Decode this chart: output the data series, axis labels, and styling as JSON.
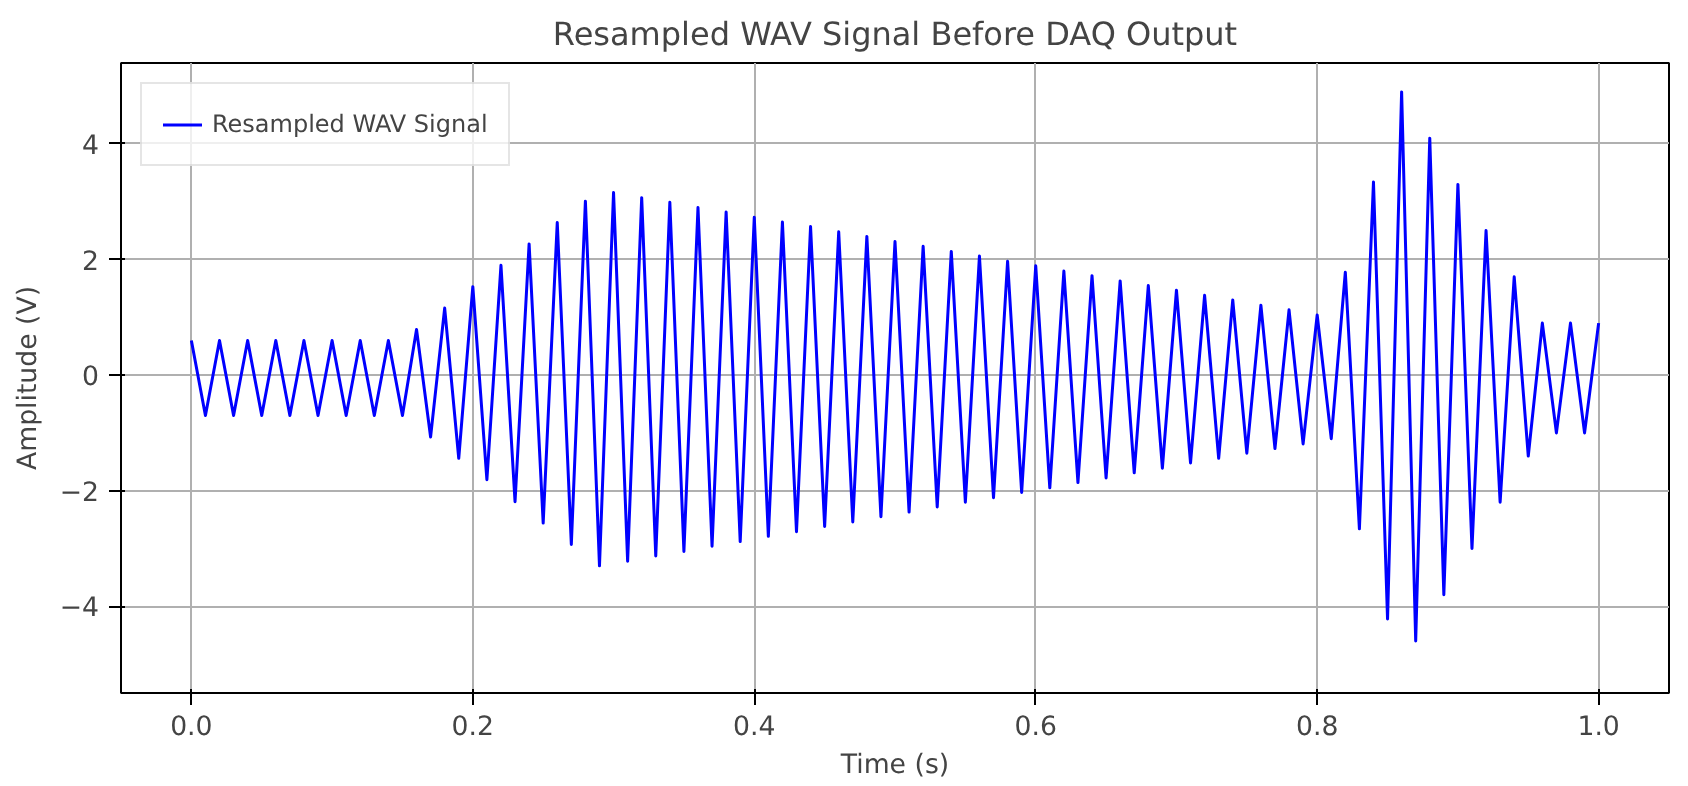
{
  "chart_data": {
    "type": "line",
    "title": "Resampled WAV Signal Before DAQ Output",
    "xlabel": "Time (s)",
    "ylabel": "Amplitude (V)",
    "x": [
      0.0,
      0.01,
      0.02,
      0.03,
      0.04,
      0.05,
      0.06,
      0.07,
      0.08,
      0.09,
      0.1,
      0.11,
      0.12,
      0.13,
      0.14,
      0.15,
      0.16,
      0.17,
      0.18,
      0.19,
      0.2,
      0.21,
      0.22,
      0.23,
      0.24,
      0.25,
      0.26,
      0.27,
      0.28,
      0.29,
      0.3,
      0.31,
      0.32,
      0.33,
      0.34,
      0.35,
      0.36,
      0.37,
      0.38,
      0.39,
      0.4,
      0.41,
      0.42,
      0.43,
      0.44,
      0.45,
      0.46,
      0.47,
      0.48,
      0.49,
      0.5,
      0.51,
      0.52,
      0.53,
      0.54,
      0.55,
      0.56,
      0.57,
      0.58,
      0.59,
      0.6,
      0.61,
      0.62,
      0.63,
      0.64,
      0.65,
      0.66,
      0.67,
      0.68,
      0.69,
      0.7,
      0.71,
      0.72,
      0.73,
      0.74,
      0.75,
      0.76,
      0.77,
      0.78,
      0.79,
      0.8,
      0.81,
      0.82,
      0.83,
      0.84,
      0.85,
      0.86,
      0.87,
      0.88,
      0.89,
      0.9,
      0.91,
      0.92,
      0.93,
      0.94,
      0.95,
      0.96,
      0.97,
      0.98,
      0.99,
      1.0
    ],
    "series": [
      {
        "name": "Resampled WAV Signal",
        "color": "#0000ff",
        "values": [
          0.6,
          -0.7,
          0.6,
          -0.7,
          0.6,
          -0.7,
          0.6,
          -0.7,
          0.6,
          -0.7,
          0.6,
          -0.7,
          0.6,
          -0.7,
          0.6,
          -0.7,
          0.79,
          -1.07,
          1.16,
          -1.44,
          1.53,
          -1.81,
          1.9,
          -2.19,
          2.27,
          -2.56,
          2.64,
          -2.93,
          3.01,
          -3.3,
          3.16,
          -3.22,
          3.07,
          -3.13,
          2.99,
          -3.05,
          2.9,
          -2.96,
          2.82,
          -2.88,
          2.73,
          -2.79,
          2.65,
          -2.71,
          2.57,
          -2.62,
          2.48,
          -2.54,
          2.4,
          -2.45,
          2.31,
          -2.37,
          2.23,
          -2.28,
          2.14,
          -2.2,
          2.06,
          -2.12,
          1.97,
          -2.03,
          1.89,
          -1.95,
          1.8,
          -1.86,
          1.72,
          -1.78,
          1.63,
          -1.69,
          1.55,
          -1.61,
          1.47,
          -1.52,
          1.38,
          -1.44,
          1.3,
          -1.35,
          1.21,
          -1.27,
          1.13,
          -1.19,
          1.04,
          -1.1,
          1.78,
          -2.66,
          3.34,
          -4.22,
          4.9,
          -4.6,
          4.1,
          -3.8,
          3.3,
          -3.0,
          2.5,
          -2.2,
          1.7,
          -1.4,
          0.9,
          -1.0,
          0.9,
          -1.0,
          0.9
        ]
      }
    ],
    "xlim": [
      -0.05,
      1.05
    ],
    "ylim": [
      -5.5,
      5.4
    ],
    "xticks": [
      {
        "value": 0.0,
        "label": "0.0"
      },
      0.2,
      0.4,
      0.6,
      0.8,
      {
        "value": 1.0,
        "label": "1.0"
      }
    ],
    "yticks": [
      -4,
      -2,
      0,
      2,
      4
    ],
    "grid": true,
    "legend": "top left",
    "line_style": "solid",
    "marker": "none"
  }
}
